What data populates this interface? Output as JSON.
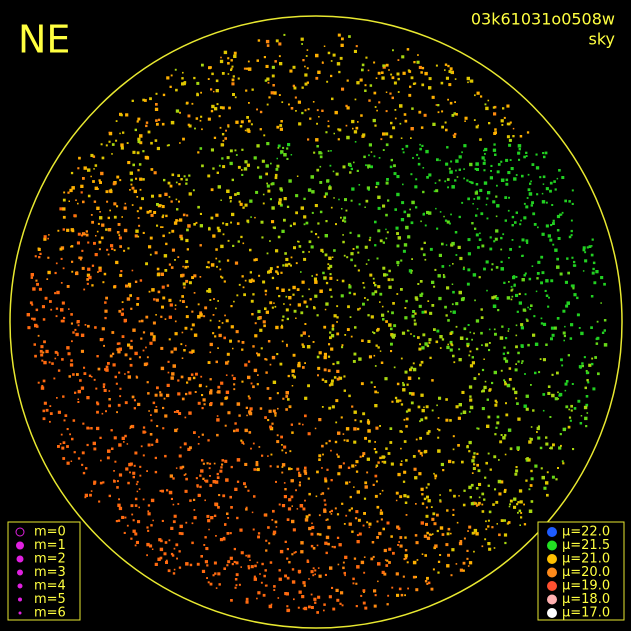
{
  "header": {
    "direction": "NE",
    "frame_id": "03k61031o0508w",
    "view": "sky"
  },
  "magnitude_legend": [
    "m=0",
    "m=1",
    "m=2",
    "m=3",
    "m=4",
    "m=5",
    "m=6"
  ],
  "brightness_legend": [
    {
      "label": "μ=22.0",
      "color": "#1e5cff"
    },
    {
      "label": "μ=21.5",
      "color": "#22e022"
    },
    {
      "label": "μ=21.0",
      "color": "#ffc000"
    },
    {
      "label": "μ=20.0",
      "color": "#ff8a1a"
    },
    {
      "label": "μ=19.0",
      "color": "#ff5030"
    },
    {
      "label": "μ=18.0",
      "color": "#ffb0b0"
    },
    {
      "label": "μ=17.0",
      "color": "#ffffff"
    }
  ]
}
